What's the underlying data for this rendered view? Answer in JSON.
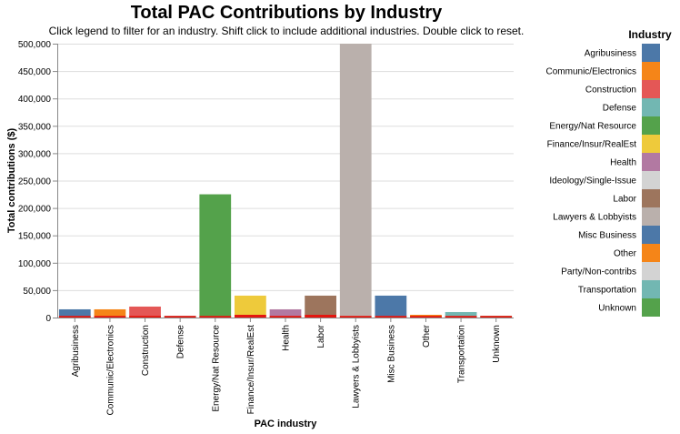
{
  "chart_data": {
    "type": "bar",
    "title": "Total PAC Contributions by Industry",
    "subtitle": "Click legend to filter for an industry. Shift click to include additional industries. Double click to reset.",
    "xlabel": "PAC industry",
    "ylabel": "Total contributions ($)",
    "ylim": [
      0,
      500000
    ],
    "yticks": [
      0,
      50000,
      100000,
      150000,
      200000,
      250000,
      300000,
      350000,
      400000,
      450000,
      500000
    ],
    "ytick_labels": [
      "0",
      "50,000",
      "100,000",
      "150,000",
      "200,000",
      "250,000",
      "300,000",
      "350,000",
      "400,000",
      "450,000",
      "500,000"
    ],
    "grid": true,
    "categories": [
      "Agribusiness",
      "Communic/Electronics",
      "Construction",
      "Defense",
      "Energy/Nat Resource",
      "Finance/Insur/RealEst",
      "Health",
      "Labor",
      "Lawyers & Lobbyists",
      "Misc Business",
      "Other",
      "Transportation",
      "Unknown"
    ],
    "values": [
      15000,
      15000,
      20000,
      3000,
      225000,
      40000,
      15000,
      40000,
      500000,
      40000,
      5000,
      10000,
      3000
    ],
    "colors": [
      "#4c78a8",
      "#f58518",
      "#e45756",
      "#72b7b2",
      "#54a24b",
      "#eeca3b",
      "#b279a2",
      "#9d755d",
      "#bab0ac",
      "#4c78a8",
      "#f58518",
      "#72b7b2",
      "#54a24b"
    ],
    "overlay_values": [
      3000,
      3000,
      3000,
      3000,
      3000,
      5000,
      3000,
      5000,
      3000,
      3000,
      3000,
      3000,
      3000
    ],
    "overlay_color": "#e4160f",
    "legend": {
      "title": "Industry",
      "placement": "right",
      "entries": [
        {
          "label": "Agribusiness",
          "color": "#4c78a8"
        },
        {
          "label": "Communic/Electronics",
          "color": "#f58518"
        },
        {
          "label": "Construction",
          "color": "#e45756"
        },
        {
          "label": "Defense",
          "color": "#72b7b2"
        },
        {
          "label": "Energy/Nat Resource",
          "color": "#54a24b"
        },
        {
          "label": "Finance/Insur/RealEst",
          "color": "#eeca3b"
        },
        {
          "label": "Health",
          "color": "#b279a2"
        },
        {
          "label": "Ideology/Single-Issue",
          "color": "#d3d3d3"
        },
        {
          "label": "Labor",
          "color": "#9d755d"
        },
        {
          "label": "Lawyers & Lobbyists",
          "color": "#bab0ac"
        },
        {
          "label": "Misc Business",
          "color": "#4c78a8"
        },
        {
          "label": "Other",
          "color": "#f58518"
        },
        {
          "label": "Party/Non-contribs",
          "color": "#d3d3d3"
        },
        {
          "label": "Transportation",
          "color": "#72b7b2"
        },
        {
          "label": "Unknown",
          "color": "#54a24b"
        }
      ]
    }
  }
}
